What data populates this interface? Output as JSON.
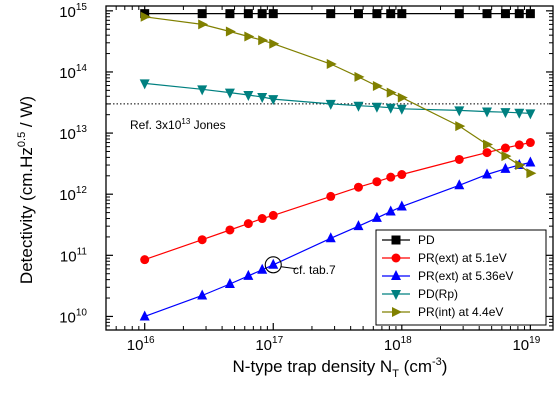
{
  "chart_data": {
    "type": "line",
    "xlabel": {
      "main": "N-type trap density N",
      "sub": "T",
      "unit_pre": " (cm",
      "sup": "-3",
      "unit_post": ")"
    },
    "ylabel": {
      "main": "Detectivity (cm.Hz",
      "sup": "0.5",
      "post": " / W)"
    },
    "x_scale": "log",
    "y_scale": "log",
    "xlim": [
      5000000000000000.0,
      1.5e+19
    ],
    "ylim": [
      6000000000.0,
      1200000000000000.0
    ],
    "x_ticks": [
      {
        "value": 1e+16,
        "base": "10",
        "exp": "16"
      },
      {
        "value": 1e+17,
        "base": "10",
        "exp": "17"
      },
      {
        "value": 1e+18,
        "base": "10",
        "exp": "18"
      },
      {
        "value": 1e+19,
        "base": "10",
        "exp": "19"
      }
    ],
    "y_ticks": [
      {
        "value": 10000000000.0,
        "base": "10",
        "exp": "10"
      },
      {
        "value": 100000000000.0,
        "base": "10",
        "exp": "11"
      },
      {
        "value": 1000000000000.0,
        "base": "10",
        "exp": "12"
      },
      {
        "value": 10000000000000.0,
        "base": "10",
        "exp": "13"
      },
      {
        "value": 100000000000000.0,
        "base": "10",
        "exp": "14"
      },
      {
        "value": 1000000000000000.0,
        "base": "10",
        "exp": "15"
      }
    ],
    "reference_line": {
      "y": 30000000000000.0,
      "label_pre": "Ref. 3x10",
      "label_sup": "13",
      "label_post": " Jones"
    },
    "annotation": {
      "x": 1e+17,
      "y": 70000000000.0,
      "text": "cf. tab.7"
    },
    "legend_position": "bottom-right",
    "x": [
      1e+16,
      2.8e+16,
      4.6e+16,
      6.4e+16,
      8.2e+16,
      1e+17,
      2.8e+17,
      4.6e+17,
      6.4e+17,
      8.2e+17,
      1e+18,
      2.8e+18,
      4.6e+18,
      6.4e+18,
      8.2e+18,
      1e+19
    ],
    "series": [
      {
        "name": "PD",
        "color": "#000000",
        "marker": "square",
        "values": [
          900000000000000.0,
          900000000000000.0,
          900000000000000.0,
          900000000000000.0,
          900000000000000.0,
          900000000000000.0,
          900000000000000.0,
          900000000000000.0,
          900000000000000.0,
          900000000000000.0,
          900000000000000.0,
          900000000000000.0,
          900000000000000.0,
          900000000000000.0,
          900000000000000.0,
          900000000000000.0
        ]
      },
      {
        "name": "PR(ext) at 5.1eV",
        "color": "#ff0000",
        "marker": "circle",
        "values": [
          85000000000.0,
          180000000000.0,
          260000000000.0,
          330000000000.0,
          400000000000.0,
          450000000000.0,
          920000000000.0,
          1300000000000.0,
          1600000000000.0,
          1900000000000.0,
          2100000000000.0,
          3700000000000.0,
          4800000000000.0,
          5700000000000.0,
          6400000000000.0,
          7000000000000.0
        ]
      },
      {
        "name": "PR(ext) at 5.36eV",
        "color": "#0000ff",
        "marker": "triangle-up",
        "values": [
          10000000000.0,
          22000000000.0,
          34000000000.0,
          46000000000.0,
          58000000000.0,
          70000000000.0,
          190000000000.0,
          300000000000.0,
          410000000000.0,
          520000000000.0,
          630000000000.0,
          1400000000000.0,
          2100000000000.0,
          2600000000000.0,
          3000000000000.0,
          3300000000000.0
        ]
      },
      {
        "name": "PD(Rp)",
        "color": "#008080",
        "marker": "triangle-down",
        "values": [
          65000000000000.0,
          52000000000000.0,
          46000000000000.0,
          42000000000000.0,
          39000000000000.0,
          36000000000000.0,
          30000000000000.0,
          28000000000000.0,
          27000000000000.0,
          26000000000000.0,
          25000000000000.0,
          23500000000000.0,
          22500000000000.0,
          22000000000000.0,
          21500000000000.0,
          21000000000000.0
        ]
      },
      {
        "name": "PR(int) at 4.4eV",
        "color": "#808000",
        "marker": "triangle-right",
        "values": [
          800000000000000.0,
          600000000000000.0,
          460000000000000.0,
          380000000000000.0,
          330000000000000.0,
          290000000000000.0,
          135000000000000.0,
          83000000000000.0,
          59000000000000.0,
          46000000000000.0,
          38000000000000.0,
          13000000000000.0,
          6500000000000.0,
          4200000000000.0,
          3000000000000.0,
          2200000000000.0
        ]
      }
    ]
  }
}
